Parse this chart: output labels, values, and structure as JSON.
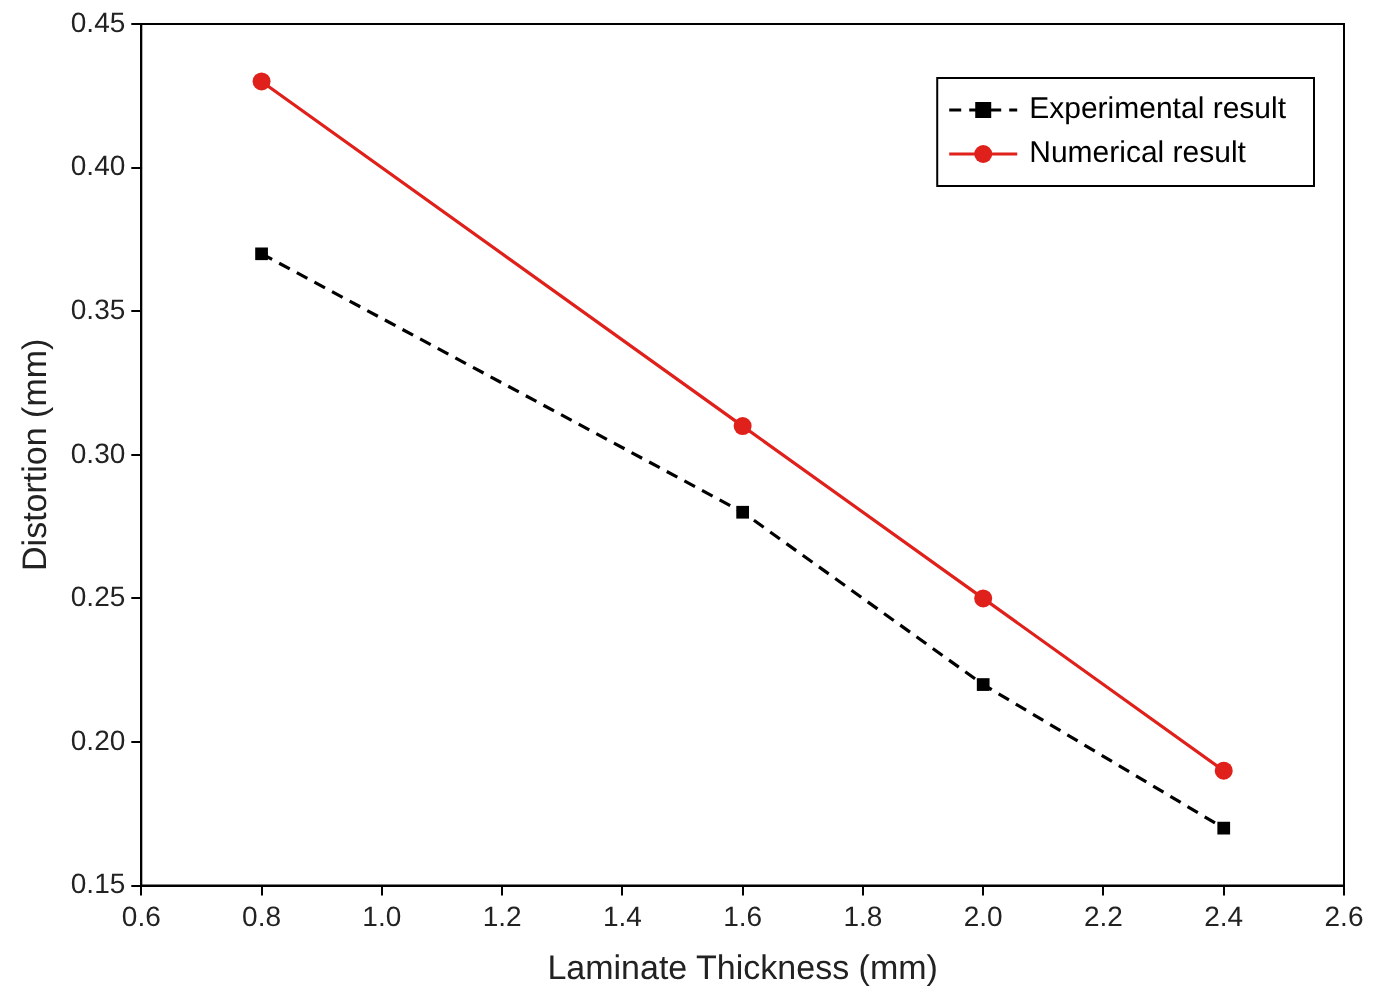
{
  "chart_data": {
    "type": "line",
    "xlabel": "Laminate Thickness (mm)",
    "ylabel": "Distortion (mm)",
    "x": [
      0.8,
      1.6,
      2.0,
      2.4
    ],
    "series": [
      {
        "name": "Experimental result",
        "color": "#000000",
        "values": [
          0.37,
          0.28,
          0.22,
          0.17
        ],
        "marker": "square",
        "line_style": "dashed"
      },
      {
        "name": "Numerical result",
        "color": "#e0201b",
        "values": [
          0.43,
          0.31,
          0.25,
          0.19
        ],
        "marker": "circle",
        "line_style": "solid"
      }
    ],
    "xlim": [
      0.6,
      2.6
    ],
    "xticks": [
      {
        "value": 0.6,
        "label": "0.6"
      },
      {
        "value": 0.8,
        "label": "0.8"
      },
      {
        "value": 1.0,
        "label": "1.0"
      },
      {
        "value": 1.2,
        "label": "1.2"
      },
      {
        "value": 1.4,
        "label": "1.4"
      },
      {
        "value": 1.6,
        "label": "1.6"
      },
      {
        "value": 1.8,
        "label": "1.8"
      },
      {
        "value": 2.0,
        "label": "2.0"
      },
      {
        "value": 2.2,
        "label": "2.2"
      },
      {
        "value": 2.4,
        "label": "2.4"
      },
      {
        "value": 2.6,
        "label": "2.6"
      }
    ],
    "ylim": [
      0.15,
      0.45
    ],
    "yticks": [
      {
        "value": 0.15,
        "label": "0.15"
      },
      {
        "value": 0.2,
        "label": "0.20"
      },
      {
        "value": 0.25,
        "label": "0.25"
      },
      {
        "value": 0.3,
        "label": "0.30"
      },
      {
        "value": 0.35,
        "label": "0.35"
      },
      {
        "value": 0.4,
        "label": "0.40"
      },
      {
        "value": 0.45,
        "label": "0.45"
      }
    ],
    "grid": false,
    "legend": "top right"
  }
}
